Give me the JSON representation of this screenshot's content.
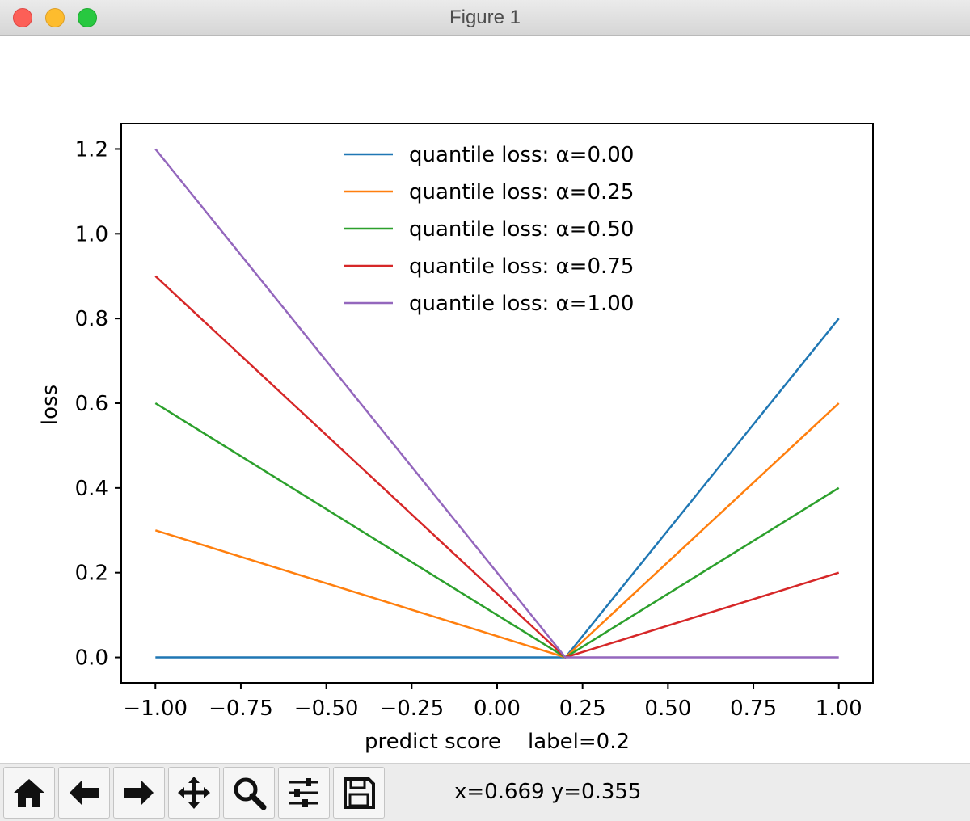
{
  "window": {
    "title": "Figure 1"
  },
  "toolbar": {
    "buttons": [
      {
        "name": "home-button",
        "icon": "home-icon"
      },
      {
        "name": "back-button",
        "icon": "arrow-left-icon"
      },
      {
        "name": "forward-button",
        "icon": "arrow-right-icon"
      },
      {
        "name": "pan-button",
        "icon": "move-icon"
      },
      {
        "name": "zoom-button",
        "icon": "magnifier-icon"
      },
      {
        "name": "configure-subplots-button",
        "icon": "sliders-icon"
      },
      {
        "name": "save-button",
        "icon": "floppy-disk-icon"
      }
    ],
    "coords": "x=0.669 y=0.355"
  },
  "chart_data": {
    "type": "line",
    "title": "",
    "xlabel": "predict score    label=0.2",
    "ylabel": "loss",
    "xlim": [
      -1.1,
      1.1
    ],
    "ylim": [
      -0.06,
      1.26
    ],
    "xticks": [
      -1.0,
      -0.75,
      -0.5,
      -0.25,
      0.0,
      0.25,
      0.5,
      0.75,
      1.0
    ],
    "xtick_labels": [
      "−1.00",
      "−0.75",
      "−0.50",
      "−0.25",
      "0.00",
      "0.25",
      "0.50",
      "0.75",
      "1.00"
    ],
    "yticks": [
      0.0,
      0.2,
      0.4,
      0.6,
      0.8,
      1.0,
      1.2
    ],
    "ytick_labels": [
      "0.0",
      "0.2",
      "0.4",
      "0.6",
      "0.8",
      "1.0",
      "1.2"
    ],
    "grid": false,
    "legend": "upper-center",
    "series": [
      {
        "name": "quantile loss: α=0.00",
        "color": "#1f77b4",
        "x": [
          -1.0,
          0.2,
          1.0
        ],
        "y": [
          0.0,
          0.0,
          0.8
        ]
      },
      {
        "name": "quantile loss: α=0.25",
        "color": "#ff7f0e",
        "x": [
          -1.0,
          0.2,
          1.0
        ],
        "y": [
          0.3,
          0.0,
          0.6
        ]
      },
      {
        "name": "quantile loss: α=0.50",
        "color": "#2ca02c",
        "x": [
          -1.0,
          0.2,
          1.0
        ],
        "y": [
          0.6,
          0.0,
          0.4
        ]
      },
      {
        "name": "quantile loss: α=0.75",
        "color": "#d62728",
        "x": [
          -1.0,
          0.2,
          1.0
        ],
        "y": [
          0.9,
          0.0,
          0.2
        ]
      },
      {
        "name": "quantile loss: α=1.00",
        "color": "#9467bd",
        "x": [
          -1.0,
          0.2,
          1.0
        ],
        "y": [
          1.2,
          0.0,
          0.0
        ]
      }
    ]
  }
}
